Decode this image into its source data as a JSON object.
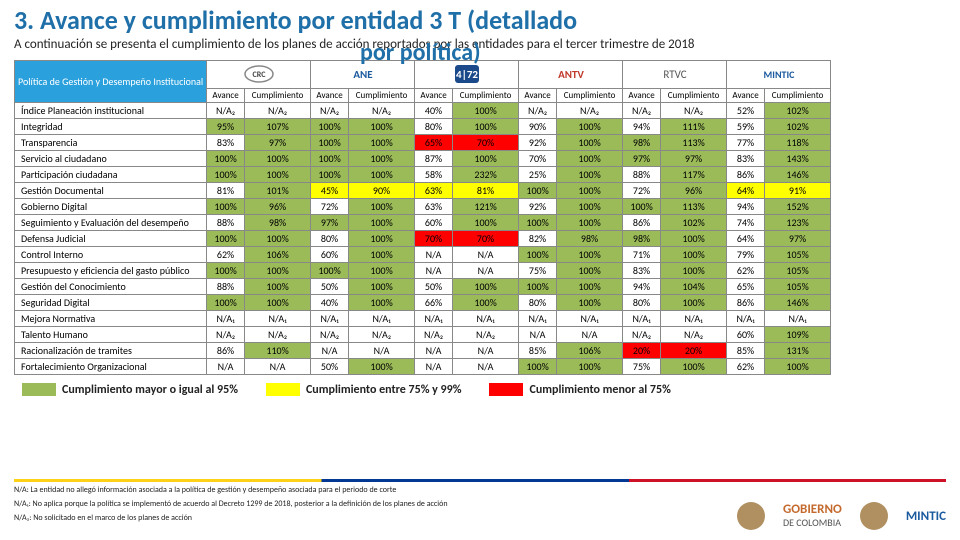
{
  "colors": {
    "green": "#9bbb59",
    "yellow": "#ffff00",
    "red": "#ff0000",
    "headerBlue": "#2aa0dd",
    "titleBlue": "#1f6fa8"
  },
  "title": "3. Avance y cumplimiento por entidad 3 T (detallado",
  "title2": "por política)",
  "subtitle": "A continuación se presenta el cumplimiento de los planes de acción reportados por las entidades para el tercer trimestre de 2018",
  "policyHeader": "Política de Gestión y Desempeño Institucional",
  "subcols": [
    "Avance",
    "Cumplimiento"
  ],
  "entities": [
    "CRC",
    "ANE",
    "72",
    "ANTV",
    "RTVC",
    "MINTIC"
  ],
  "rows": [
    {
      "label": "Índice Planeación institucional",
      "cells": [
        [
          "N/A₂",
          "p"
        ],
        [
          "N/A₂",
          "p"
        ],
        [
          "N/A₂",
          "p"
        ],
        [
          "N/A₂",
          "p"
        ],
        [
          "40%",
          "p"
        ],
        [
          "100%",
          "g"
        ],
        [
          "N/A₂",
          "p"
        ],
        [
          "N/A₂",
          "p"
        ],
        [
          "N/A₂",
          "p"
        ],
        [
          "N/A₂",
          "p"
        ],
        [
          "52%",
          "p"
        ],
        [
          "102%",
          "g"
        ]
      ]
    },
    {
      "label": "Integridad",
      "cells": [
        [
          "95%",
          "g"
        ],
        [
          "107%",
          "g"
        ],
        [
          "100%",
          "g"
        ],
        [
          "100%",
          "g"
        ],
        [
          "80%",
          "p"
        ],
        [
          "100%",
          "g"
        ],
        [
          "90%",
          "p"
        ],
        [
          "100%",
          "g"
        ],
        [
          "94%",
          "p"
        ],
        [
          "111%",
          "g"
        ],
        [
          "59%",
          "p"
        ],
        [
          "102%",
          "g"
        ]
      ]
    },
    {
      "label": "Transparencia",
      "cells": [
        [
          "83%",
          "p"
        ],
        [
          "97%",
          "g"
        ],
        [
          "100%",
          "g"
        ],
        [
          "100%",
          "g"
        ],
        [
          "65%",
          "r"
        ],
        [
          "70%",
          "r"
        ],
        [
          "92%",
          "p"
        ],
        [
          "100%",
          "g"
        ],
        [
          "98%",
          "g"
        ],
        [
          "113%",
          "g"
        ],
        [
          "77%",
          "p"
        ],
        [
          "118%",
          "g"
        ]
      ]
    },
    {
      "label": "Servicio al ciudadano",
      "cells": [
        [
          "100%",
          "g"
        ],
        [
          "100%",
          "g"
        ],
        [
          "100%",
          "g"
        ],
        [
          "100%",
          "g"
        ],
        [
          "87%",
          "p"
        ],
        [
          "100%",
          "g"
        ],
        [
          "70%",
          "p"
        ],
        [
          "100%",
          "g"
        ],
        [
          "97%",
          "g"
        ],
        [
          "97%",
          "g"
        ],
        [
          "83%",
          "p"
        ],
        [
          "143%",
          "g"
        ]
      ]
    },
    {
      "label": "Participación ciudadana",
      "cells": [
        [
          "100%",
          "g"
        ],
        [
          "100%",
          "g"
        ],
        [
          "100%",
          "g"
        ],
        [
          "100%",
          "g"
        ],
        [
          "58%",
          "p"
        ],
        [
          "232%",
          "g"
        ],
        [
          "25%",
          "p"
        ],
        [
          "100%",
          "g"
        ],
        [
          "88%",
          "p"
        ],
        [
          "117%",
          "g"
        ],
        [
          "86%",
          "p"
        ],
        [
          "146%",
          "g"
        ]
      ]
    },
    {
      "label": "Gestión Documental",
      "cells": [
        [
          "81%",
          "p"
        ],
        [
          "101%",
          "g"
        ],
        [
          "45%",
          "y"
        ],
        [
          "90%",
          "y"
        ],
        [
          "63%",
          "y"
        ],
        [
          "81%",
          "y"
        ],
        [
          "100%",
          "g"
        ],
        [
          "100%",
          "g"
        ],
        [
          "72%",
          "p"
        ],
        [
          "96%",
          "g"
        ],
        [
          "64%",
          "y"
        ],
        [
          "91%",
          "y"
        ]
      ]
    },
    {
      "label": "Gobierno Digital",
      "cells": [
        [
          "100%",
          "g"
        ],
        [
          "96%",
          "g"
        ],
        [
          "72%",
          "p"
        ],
        [
          "100%",
          "g"
        ],
        [
          "63%",
          "p"
        ],
        [
          "121%",
          "g"
        ],
        [
          "92%",
          "p"
        ],
        [
          "100%",
          "g"
        ],
        [
          "100%",
          "g"
        ],
        [
          "113%",
          "g"
        ],
        [
          "94%",
          "p"
        ],
        [
          "152%",
          "g"
        ]
      ]
    },
    {
      "label": "Seguimiento y Evaluación del desempeño",
      "cells": [
        [
          "88%",
          "p"
        ],
        [
          "98%",
          "g"
        ],
        [
          "97%",
          "g"
        ],
        [
          "100%",
          "g"
        ],
        [
          "60%",
          "p"
        ],
        [
          "100%",
          "g"
        ],
        [
          "100%",
          "g"
        ],
        [
          "100%",
          "g"
        ],
        [
          "86%",
          "p"
        ],
        [
          "102%",
          "g"
        ],
        [
          "74%",
          "p"
        ],
        [
          "123%",
          "g"
        ]
      ]
    },
    {
      "label": "Defensa Judicial",
      "cells": [
        [
          "100%",
          "g"
        ],
        [
          "100%",
          "g"
        ],
        [
          "80%",
          "p"
        ],
        [
          "100%",
          "g"
        ],
        [
          "70%",
          "r"
        ],
        [
          "70%",
          "r"
        ],
        [
          "82%",
          "p"
        ],
        [
          "98%",
          "g"
        ],
        [
          "98%",
          "g"
        ],
        [
          "100%",
          "g"
        ],
        [
          "64%",
          "p"
        ],
        [
          "97%",
          "g"
        ]
      ]
    },
    {
      "label": "Control Interno",
      "cells": [
        [
          "62%",
          "p"
        ],
        [
          "106%",
          "g"
        ],
        [
          "60%",
          "p"
        ],
        [
          "100%",
          "g"
        ],
        [
          "N/A",
          "p"
        ],
        [
          "N/A",
          "p"
        ],
        [
          "100%",
          "g"
        ],
        [
          "100%",
          "g"
        ],
        [
          "71%",
          "p"
        ],
        [
          "100%",
          "g"
        ],
        [
          "79%",
          "p"
        ],
        [
          "105%",
          "g"
        ]
      ]
    },
    {
      "label": "Presupuesto y eficiencia del gasto público",
      "cells": [
        [
          "100%",
          "g"
        ],
        [
          "100%",
          "g"
        ],
        [
          "100%",
          "g"
        ],
        [
          "100%",
          "g"
        ],
        [
          "N/A",
          "p"
        ],
        [
          "N/A",
          "p"
        ],
        [
          "75%",
          "p"
        ],
        [
          "100%",
          "g"
        ],
        [
          "83%",
          "p"
        ],
        [
          "100%",
          "g"
        ],
        [
          "62%",
          "p"
        ],
        [
          "105%",
          "g"
        ]
      ]
    },
    {
      "label": "Gestión del Conocimiento",
      "cells": [
        [
          "88%",
          "p"
        ],
        [
          "100%",
          "g"
        ],
        [
          "50%",
          "p"
        ],
        [
          "100%",
          "g"
        ],
        [
          "50%",
          "p"
        ],
        [
          "100%",
          "g"
        ],
        [
          "100%",
          "g"
        ],
        [
          "100%",
          "g"
        ],
        [
          "94%",
          "p"
        ],
        [
          "104%",
          "g"
        ],
        [
          "65%",
          "p"
        ],
        [
          "105%",
          "g"
        ]
      ]
    },
    {
      "label": "Seguridad Digital",
      "cells": [
        [
          "100%",
          "g"
        ],
        [
          "100%",
          "g"
        ],
        [
          "40%",
          "p"
        ],
        [
          "100%",
          "g"
        ],
        [
          "66%",
          "p"
        ],
        [
          "100%",
          "g"
        ],
        [
          "80%",
          "p"
        ],
        [
          "100%",
          "g"
        ],
        [
          "80%",
          "p"
        ],
        [
          "100%",
          "g"
        ],
        [
          "86%",
          "p"
        ],
        [
          "146%",
          "g"
        ]
      ]
    },
    {
      "label": "Mejora Normativa",
      "cells": [
        [
          "N/A₁",
          "p"
        ],
        [
          "N/A₁",
          "p"
        ],
        [
          "N/A₁",
          "p"
        ],
        [
          "N/A₁",
          "p"
        ],
        [
          "N/A₁",
          "p"
        ],
        [
          "N/A₁",
          "p"
        ],
        [
          "N/A₁",
          "p"
        ],
        [
          "N/A₁",
          "p"
        ],
        [
          "N/A₁",
          "p"
        ],
        [
          "N/A₁",
          "p"
        ],
        [
          "N/A₁",
          "p"
        ],
        [
          "N/A₁",
          "p"
        ]
      ]
    },
    {
      "label": "Talento Humano",
      "cells": [
        [
          "N/A₂",
          "p"
        ],
        [
          "N/A₂",
          "p"
        ],
        [
          "N/A₂",
          "p"
        ],
        [
          "N/A₂",
          "p"
        ],
        [
          "N/A₂",
          "p"
        ],
        [
          "N/A₂",
          "p"
        ],
        [
          "N/A",
          "p"
        ],
        [
          "N/A",
          "p"
        ],
        [
          "N/A₂",
          "p"
        ],
        [
          "N/A₂",
          "p"
        ],
        [
          "60%",
          "p"
        ],
        [
          "109%",
          "g"
        ]
      ]
    },
    {
      "label": "Racionalización de tramites",
      "cells": [
        [
          "86%",
          "p"
        ],
        [
          "110%",
          "g"
        ],
        [
          "N/A",
          "p"
        ],
        [
          "N/A",
          "p"
        ],
        [
          "N/A",
          "p"
        ],
        [
          "N/A",
          "p"
        ],
        [
          "85%",
          "p"
        ],
        [
          "106%",
          "g"
        ],
        [
          "20%",
          "r"
        ],
        [
          "20%",
          "r"
        ],
        [
          "85%",
          "p"
        ],
        [
          "131%",
          "g"
        ]
      ]
    },
    {
      "label": "Fortalecimiento Organizacional",
      "cells": [
        [
          "N/A",
          "p"
        ],
        [
          "N/A",
          "p"
        ],
        [
          "50%",
          "p"
        ],
        [
          "100%",
          "g"
        ],
        [
          "N/A",
          "p"
        ],
        [
          "N/A",
          "p"
        ],
        [
          "100%",
          "g"
        ],
        [
          "100%",
          "g"
        ],
        [
          "75%",
          "p"
        ],
        [
          "100%",
          "g"
        ],
        [
          "62%",
          "p"
        ],
        [
          "100%",
          "g"
        ]
      ]
    }
  ],
  "legend": [
    {
      "color": "#9bbb59",
      "text": "Cumplimiento mayor o igual al 95%"
    },
    {
      "color": "#ffff00",
      "text": "Cumplimiento entre 75% y 99%"
    },
    {
      "color": "#ff0000",
      "text": "Cumplimiento menor al 75%"
    }
  ],
  "notes": [
    "N/A: La entidad no allegó información asociada a la política de gestión y desempeño asociada para el periodo de corte",
    "N/A₁: No aplica porque la política se implementó de acuerdo al Decreto 1299 de 2018, posterior a la definición de los planes de acción",
    "N/A₂: No solicitado en el marco de los planes de acción"
  ],
  "footer": {
    "gob1": "GOBIERNO",
    "gob2": "DE COLOMBIA",
    "mintic": "MINTIC"
  }
}
